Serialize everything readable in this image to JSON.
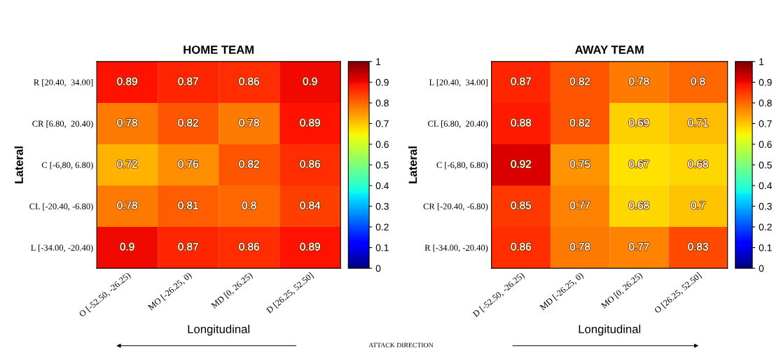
{
  "chart_data": [
    {
      "type": "heatmap",
      "title": "HOME TEAM",
      "xlabel": "Longitudinal",
      "ylabel": "Lateral",
      "categories": [
        "O [-52.50, -26.25)",
        "MO [-26.25, 0)",
        "MD [0, 26.25)",
        "D [26.25, 52.50]"
      ],
      "y_categories": [
        "R [20.40,  34.00]",
        "CR [6.80,  20.40)",
        "C [-6,80, 6.80)",
        "CL [-20.40, -6.80)",
        "L [-34.00, -20.40)"
      ],
      "cells": [
        [
          0.89,
          0.87,
          0.86,
          0.9
        ],
        [
          0.78,
          0.82,
          0.78,
          0.89
        ],
        [
          0.72,
          0.76,
          0.82,
          0.86
        ],
        [
          0.78,
          0.81,
          0.8,
          0.84
        ],
        [
          0.9,
          0.87,
          0.86,
          0.89
        ]
      ],
      "clim": [
        0,
        1
      ],
      "cticks": [
        0,
        0.1,
        0.2,
        0.3,
        0.4,
        0.5,
        0.6,
        0.7,
        0.8,
        0.9,
        1
      ],
      "data_labels": true,
      "annotations": [
        "ATTACK DIRECTION"
      ]
    },
    {
      "type": "heatmap",
      "title": "AWAY TEAM",
      "xlabel": "Longitudinal",
      "ylabel": "Lateral",
      "categories": [
        "D [-52.50, -26.25)",
        "MD [-26.25, 0)",
        "MO [0, 26.25)",
        "O [26.25, 52.50]"
      ],
      "y_categories": [
        "L [20.40,  34.00]",
        "CL [6.80,  20.40)",
        "C [-6,80, 6.80)",
        "CR [-20.40, -6.80)",
        "R [-34.00, -20.40)"
      ],
      "cells": [
        [
          0.87,
          0.82,
          0.78,
          0.8
        ],
        [
          0.88,
          0.82,
          0.69,
          0.71
        ],
        [
          0.92,
          0.75,
          0.67,
          0.68
        ],
        [
          0.85,
          0.77,
          0.68,
          0.7
        ],
        [
          0.86,
          0.78,
          0.77,
          0.83
        ]
      ],
      "clim": [
        0,
        1
      ],
      "cticks": [
        0,
        0.1,
        0.2,
        0.3,
        0.4,
        0.5,
        0.6,
        0.7,
        0.8,
        0.9,
        1
      ],
      "data_labels": true
    }
  ]
}
